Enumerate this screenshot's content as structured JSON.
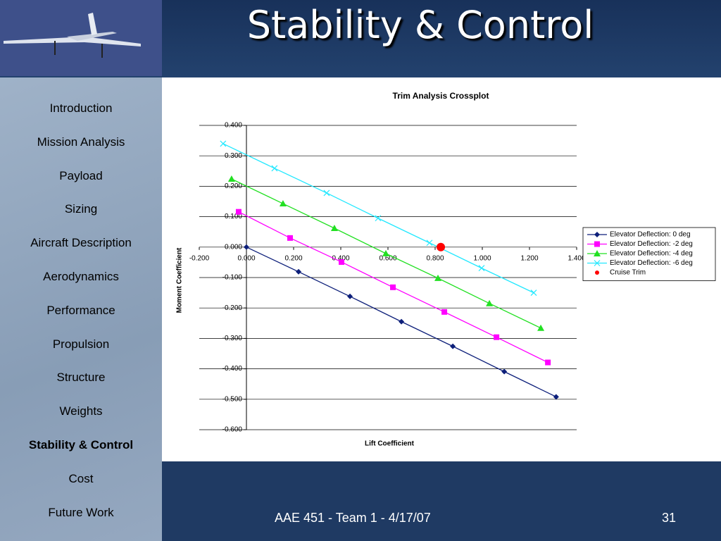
{
  "slide": {
    "title": "Stability & Control",
    "nav": [
      "Introduction",
      "Mission Analysis",
      "Payload",
      "Sizing",
      "Aircraft Description",
      "Aerodynamics",
      "Performance",
      "Propulsion",
      "Structure",
      "Weights",
      "Stability & Control",
      "Cost",
      "Future Work"
    ],
    "active_nav": 10,
    "footer": "AAE 451 - Team 1 - 4/17/07",
    "page_number": "31"
  },
  "chart_data": {
    "type": "line",
    "title": "Trim Analysis Crossplot",
    "xlabel": "Lift Coefficient",
    "ylabel": "Moment Coefficient",
    "xlim": [
      -0.2,
      1.4
    ],
    "xticks": [
      {
        "value": -0.2,
        "label": "-0.200"
      },
      {
        "value": 0,
        "label": "0.000"
      },
      {
        "value": 0.2,
        "label": "0.200"
      },
      {
        "value": 0.4,
        "label": "0.400"
      },
      {
        "value": 0.6,
        "label": "0.600"
      },
      {
        "value": 0.8,
        "label": "0.800"
      },
      {
        "value": 1.0,
        "label": "1.000"
      },
      {
        "value": 1.2,
        "label": "1.200"
      },
      {
        "value": 1.4,
        "label": "1.400"
      }
    ],
    "ylim": [
      -0.6,
      0.4
    ],
    "yticks": [
      {
        "value": 0.4,
        "label": "0.400"
      },
      {
        "value": 0.3,
        "label": "0.300"
      },
      {
        "value": 0.2,
        "label": "0.200"
      },
      {
        "value": 0.1,
        "label": "0.100"
      },
      {
        "value": 0,
        "label": "0.000"
      },
      {
        "value": -0.1,
        "label": "-0.100"
      },
      {
        "value": -0.2,
        "label": "-0.200"
      },
      {
        "value": -0.3,
        "label": "-0.300"
      },
      {
        "value": -0.4,
        "label": "-0.400"
      },
      {
        "value": -0.5,
        "label": "-0.500"
      },
      {
        "value": -0.6,
        "label": "-0.600"
      }
    ],
    "grid": true,
    "legend": "right",
    "series": [
      {
        "name": "Elevator Deflection: 0 deg",
        "color": "#0d1f7a",
        "marker": "diamond",
        "line": true,
        "x": [
          0,
          0.221,
          0.439,
          0.657,
          0.875,
          1.093,
          1.313
        ],
        "values": [
          0,
          -0.081,
          -0.162,
          -0.245,
          -0.326,
          -0.409,
          -0.492
        ]
      },
      {
        "name": "Elevator Deflection: -2 deg",
        "color": "#ff00ff",
        "marker": "square",
        "line": true,
        "x": [
          -0.033,
          0.185,
          0.403,
          0.621,
          0.839,
          1.06,
          1.278
        ],
        "values": [
          0.116,
          0.03,
          -0.049,
          -0.132,
          -0.213,
          -0.296,
          -0.379
        ]
      },
      {
        "name": "Elevator Deflection: -4 deg",
        "color": "#22e022",
        "marker": "triangle",
        "line": true,
        "x": [
          -0.063,
          0.155,
          0.373,
          0.591,
          0.812,
          1.03,
          1.248
        ],
        "values": [
          0.224,
          0.143,
          0.062,
          -0.021,
          -0.102,
          -0.185,
          -0.266
        ]
      },
      {
        "name": "Elevator Deflection: -6 deg",
        "color": "#22e8ff",
        "marker": "x",
        "line": true,
        "x": [
          -0.099,
          0.119,
          0.34,
          0.558,
          0.776,
          0.997,
          1.218
        ],
        "values": [
          0.34,
          0.259,
          0.178,
          0.095,
          0.014,
          -0.069,
          -0.15
        ]
      },
      {
        "name": "Cruise Trim",
        "color": "#ff0000",
        "marker": "circle",
        "line": false,
        "x": [
          0.824
        ],
        "values": [
          0
        ]
      }
    ]
  }
}
